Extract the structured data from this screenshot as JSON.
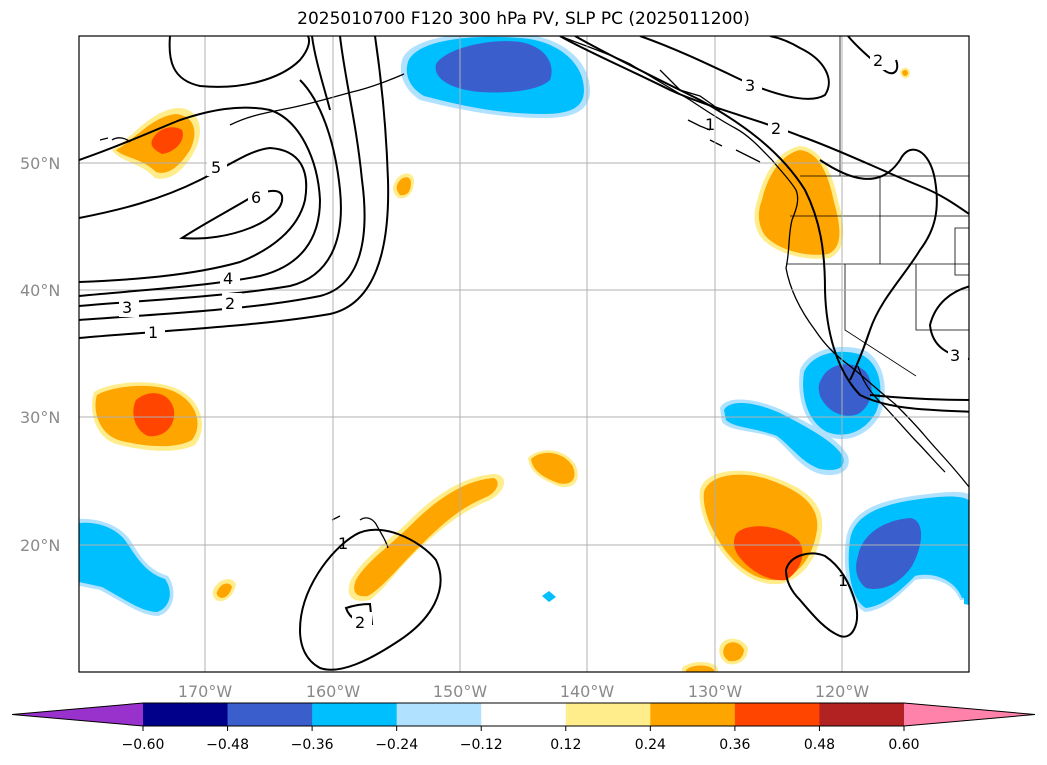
{
  "title": "2025010700 F120 300 hPa PV, SLP PC (2025011200)",
  "lat_labels": [
    "50°N",
    "40°N",
    "30°N",
    "20°N"
  ],
  "lon_labels": [
    "170°W",
    "160°W",
    "150°W",
    "140°W",
    "130°W",
    "120°W"
  ],
  "colorbar": {
    "ticks": [
      "−0.60",
      "−0.48",
      "−0.36",
      "−0.24",
      "−0.12",
      "0.12",
      "0.24",
      "0.36",
      "0.48",
      "0.60"
    ],
    "colors": [
      "#9932cc",
      "#00008b",
      "#3a5fcd",
      "#00bfff",
      "#b0e2ff",
      "#ffffff",
      "#ffec8b",
      "#ffa500",
      "#ff4500",
      "#b22222",
      "#ff82ab"
    ]
  },
  "contour_labels": [
    "5",
    "6",
    "4",
    "3",
    "2",
    "1",
    "1",
    "2",
    "3",
    "2",
    "1",
    "3",
    "1",
    "2"
  ],
  "colors": {
    "yellow": "#ffec8b",
    "orange": "#ffa500",
    "red": "#ff4500",
    "pale_blue": "#b0e2ff",
    "sky_blue": "#00bfff",
    "royal_blue": "#3a5fcd",
    "navy": "#00008b",
    "grid": "#b0b0b0"
  }
}
